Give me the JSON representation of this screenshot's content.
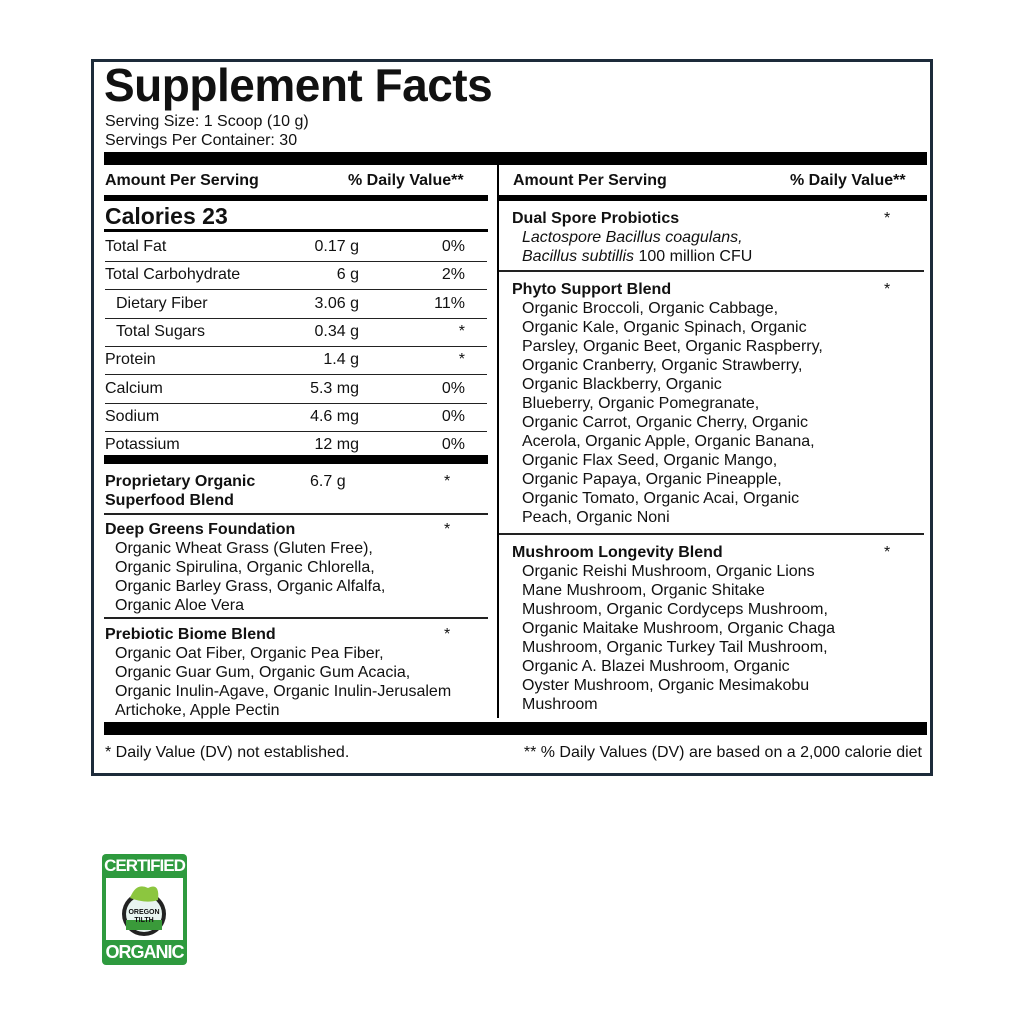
{
  "title": "Supplement Facts",
  "serving_size": "Serving Size: 1 Scoop (10 g)",
  "servings_per_container": "Servings Per Container: 30",
  "left_header": {
    "amount": "Amount Per Serving",
    "dv": "% Daily Value**"
  },
  "right_header": {
    "amount": "Amount Per Serving",
    "dv": "% Daily Value**"
  },
  "calories": "Calories 23",
  "nutrients": [
    {
      "name": "Total Fat",
      "amount": "0.17 g",
      "dv": "0%"
    },
    {
      "name": "Total Carbohydrate",
      "amount": "6 g",
      "dv": "2%"
    },
    {
      "name": "Dietary Fiber",
      "amount": "3.06 g",
      "dv": "11%"
    },
    {
      "name": "Total Sugars",
      "amount": "0.34 g",
      "dv": "*"
    },
    {
      "name": "Protein",
      "amount": "1.4 g",
      "dv": "*"
    },
    {
      "name": "Calcium",
      "amount": "5.3 mg",
      "dv": "0%"
    },
    {
      "name": "Sodium",
      "amount": "4.6 mg",
      "dv": "0%"
    },
    {
      "name": "Potassium",
      "amount": "12 mg",
      "dv": "0%"
    }
  ],
  "proprietary": {
    "name1": "Proprietary Organic",
    "name2": "Superfood Blend",
    "amount": "6.7 g",
    "dv": "*"
  },
  "deep_greens": {
    "name": "Deep Greens Foundation",
    "dv": "*",
    "lines": [
      "Organic Wheat Grass (Gluten Free),",
      "Organic Spirulina, Organic Chlorella,",
      "Organic Barley Grass, Organic Alfalfa,",
      "Organic Aloe Vera"
    ]
  },
  "prebiotic": {
    "name": "Prebiotic Biome Blend",
    "dv": "*",
    "lines": [
      "Organic Oat Fiber, Organic Pea Fiber,",
      "Organic Guar Gum, Organic Gum Acacia,",
      "Organic Inulin-Agave, Organic Inulin-Jerusalem",
      "Artichoke, Apple Pectin"
    ]
  },
  "probiotics": {
    "name": "Dual Spore Probiotics",
    "dv": "*",
    "line1": "Lactospore Bacillus coagulans,",
    "line2_italic": "Bacillus subtillis",
    "line2_rest": " 100 million CFU"
  },
  "phyto": {
    "name": "Phyto Support Blend",
    "dv": "*",
    "lines": [
      "Organic Broccoli, Organic Cabbage,",
      "Organic Kale, Organic Spinach, Organic",
      "Parsley, Organic Beet, Organic Raspberry,",
      "Organic Cranberry, Organic Strawberry,",
      "Organic Blackberry, Organic",
      "Blueberry, Organic Pomegranate,",
      "Organic Carrot, Organic Cherry, Organic",
      "Acerola, Organic Apple, Organic Banana,",
      "Organic Flax Seed, Organic Mango,",
      "Organic Papaya, Organic Pineapple,",
      "Organic Tomato, Organic Acai, Organic",
      "Peach, Organic Noni"
    ]
  },
  "mushroom": {
    "name": "Mushroom Longevity Blend",
    "dv": "*",
    "lines": [
      "Organic Reishi Mushroom, Organic Lions",
      "Mane Mushroom, Organic Shitake",
      "Mushroom, Organic Cordyceps Mushroom,",
      "Organic Maitake Mushroom, Organic Chaga",
      "Mushroom, Organic Turkey Tail Mushroom,",
      "Organic A. Blazei Mushroom, Organic",
      "Oyster Mushroom, Organic Mesimakobu",
      "Mushroom"
    ]
  },
  "footnote_left": "* Daily Value (DV) not established.",
  "footnote_right": "** % Daily Values (DV) are based on a 2,000 calorie diet",
  "logo": {
    "top": "CERTIFIED",
    "middle1": "OREGON",
    "middle2": "TILTH",
    "bottom": "ORGANIC",
    "color": "#2e9a3e"
  }
}
